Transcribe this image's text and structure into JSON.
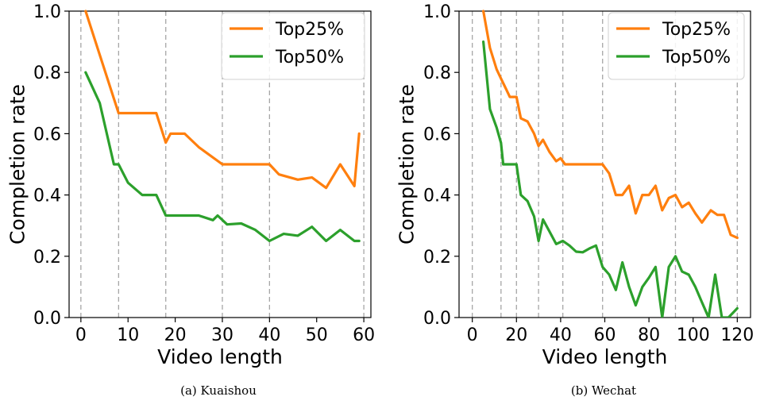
{
  "chart_data": [
    {
      "type": "line",
      "caption": "(a) Kuaishou",
      "xlabel": "Video length",
      "ylabel": "Completion rate",
      "xlim": [
        -2.5,
        61.5
      ],
      "ylim": [
        0.0,
        1.0
      ],
      "xticks": [
        0,
        10,
        20,
        30,
        40,
        50,
        60
      ],
      "yticks": [
        "0.0",
        "0.2",
        "0.4",
        "0.6",
        "0.8",
        "1.0"
      ],
      "vlines": [
        0,
        8,
        18,
        30,
        40,
        60
      ],
      "legend": "top-right",
      "series": [
        {
          "name": "Top25%",
          "color": "#ff7f0e",
          "x": [
            1,
            8,
            16,
            18,
            19,
            22,
            25,
            30,
            33,
            36,
            40,
            42,
            46,
            49,
            52,
            55,
            58,
            59
          ],
          "y": [
            1.0,
            0.667,
            0.667,
            0.571,
            0.6,
            0.6,
            0.556,
            0.5,
            0.5,
            0.5,
            0.5,
            0.467,
            0.45,
            0.457,
            0.423,
            0.5,
            0.429,
            0.6
          ]
        },
        {
          "name": "Top50%",
          "color": "#2ca02c",
          "x": [
            1,
            4,
            7,
            8,
            10,
            13,
            16,
            18,
            21,
            25,
            28,
            29,
            31,
            34,
            37,
            40,
            43,
            46,
            49,
            52,
            55,
            58,
            59
          ],
          "y": [
            0.8,
            0.7,
            0.5,
            0.5,
            0.44,
            0.4,
            0.4,
            0.333,
            0.333,
            0.333,
            0.318,
            0.333,
            0.304,
            0.307,
            0.286,
            0.25,
            0.273,
            0.267,
            0.296,
            0.25,
            0.286,
            0.25,
            0.25
          ]
        }
      ]
    },
    {
      "type": "line",
      "caption": "(b) Wechat",
      "xlabel": "Video length",
      "ylabel": "Completion rate",
      "xlim": [
        -6,
        126
      ],
      "ylim": [
        0.0,
        1.0
      ],
      "xticks": [
        0,
        20,
        40,
        60,
        80,
        100,
        120
      ],
      "yticks": [
        "0.0",
        "0.2",
        "0.4",
        "0.6",
        "0.8",
        "1.0"
      ],
      "vlines": [
        0,
        13,
        20,
        30,
        41,
        59,
        92,
        120
      ],
      "legend": "top-right",
      "series": [
        {
          "name": "Top25%",
          "color": "#ff7f0e",
          "x": [
            5,
            8,
            11,
            13,
            15,
            17,
            20,
            22,
            25,
            28,
            30,
            32,
            35,
            38,
            40,
            42,
            45,
            50,
            55,
            59,
            62,
            65,
            68,
            71,
            74,
            77,
            80,
            83,
            86,
            89,
            92,
            95,
            98,
            101,
            104,
            108,
            111,
            114,
            117,
            120
          ],
          "y": [
            1.0,
            0.88,
            0.81,
            0.78,
            0.75,
            0.72,
            0.72,
            0.65,
            0.64,
            0.6,
            0.56,
            0.58,
            0.54,
            0.51,
            0.52,
            0.5,
            0.5,
            0.5,
            0.5,
            0.5,
            0.47,
            0.4,
            0.4,
            0.43,
            0.34,
            0.4,
            0.4,
            0.43,
            0.35,
            0.39,
            0.4,
            0.36,
            0.375,
            0.34,
            0.31,
            0.35,
            0.335,
            0.335,
            0.27,
            0.26
          ]
        },
        {
          "name": "Top50%",
          "color": "#2ca02c",
          "x": [
            5,
            8,
            11,
            13,
            14,
            20,
            22,
            25,
            28,
            30,
            32,
            35,
            38,
            41,
            44,
            47,
            50,
            53,
            56,
            59,
            62,
            65,
            68,
            71,
            74,
            77,
            80,
            83,
            86,
            89,
            92,
            95,
            98,
            101,
            104,
            107,
            110,
            113,
            116,
            120
          ],
          "y": [
            0.9,
            0.68,
            0.62,
            0.57,
            0.5,
            0.5,
            0.4,
            0.38,
            0.33,
            0.25,
            0.32,
            0.28,
            0.24,
            0.25,
            0.235,
            0.215,
            0.213,
            0.225,
            0.235,
            0.165,
            0.14,
            0.09,
            0.18,
            0.1,
            0.04,
            0.1,
            0.13,
            0.165,
            0.0,
            0.165,
            0.2,
            0.15,
            0.14,
            0.1,
            0.05,
            0.0,
            0.14,
            0.0,
            0.0,
            0.03
          ]
        }
      ]
    }
  ]
}
